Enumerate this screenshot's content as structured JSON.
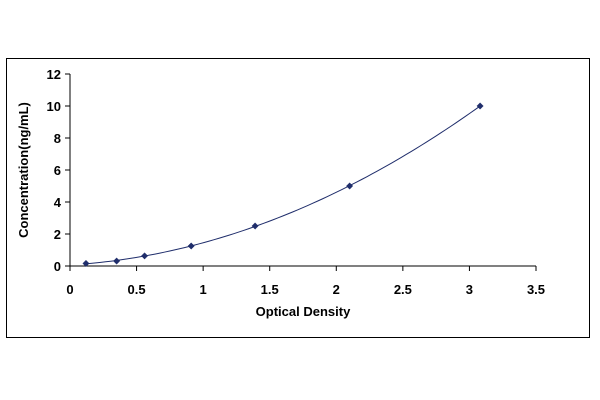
{
  "chart_data": {
    "type": "scatter",
    "title": "",
    "xlabel": "Optical Density",
    "ylabel": "Concentration(ng/mL)",
    "xlim": [
      0,
      3.5
    ],
    "ylim": [
      0,
      12
    ],
    "xticks": [
      0,
      0.5,
      1,
      1.5,
      2,
      2.5,
      3,
      3.5
    ],
    "yticks": [
      0,
      2,
      4,
      6,
      8,
      10,
      12
    ],
    "xtick_labels": [
      "0",
      "0.5",
      "1",
      "1.5",
      "2",
      "2.5",
      "3",
      "3.5"
    ],
    "ytick_labels": [
      "0",
      "2",
      "4",
      "6",
      "8",
      "10",
      "12"
    ],
    "grid": false,
    "legend": "none",
    "marker_color": "#1f2d6b",
    "line_color": "#1f2d6b",
    "series": [
      {
        "x": [
          0.12,
          0.35,
          0.56,
          0.91,
          1.39,
          2.1,
          3.08
        ],
        "y": [
          0.16,
          0.31,
          0.63,
          1.25,
          2.5,
          5.0,
          10.0
        ],
        "trendline": "polynomial"
      }
    ]
  }
}
